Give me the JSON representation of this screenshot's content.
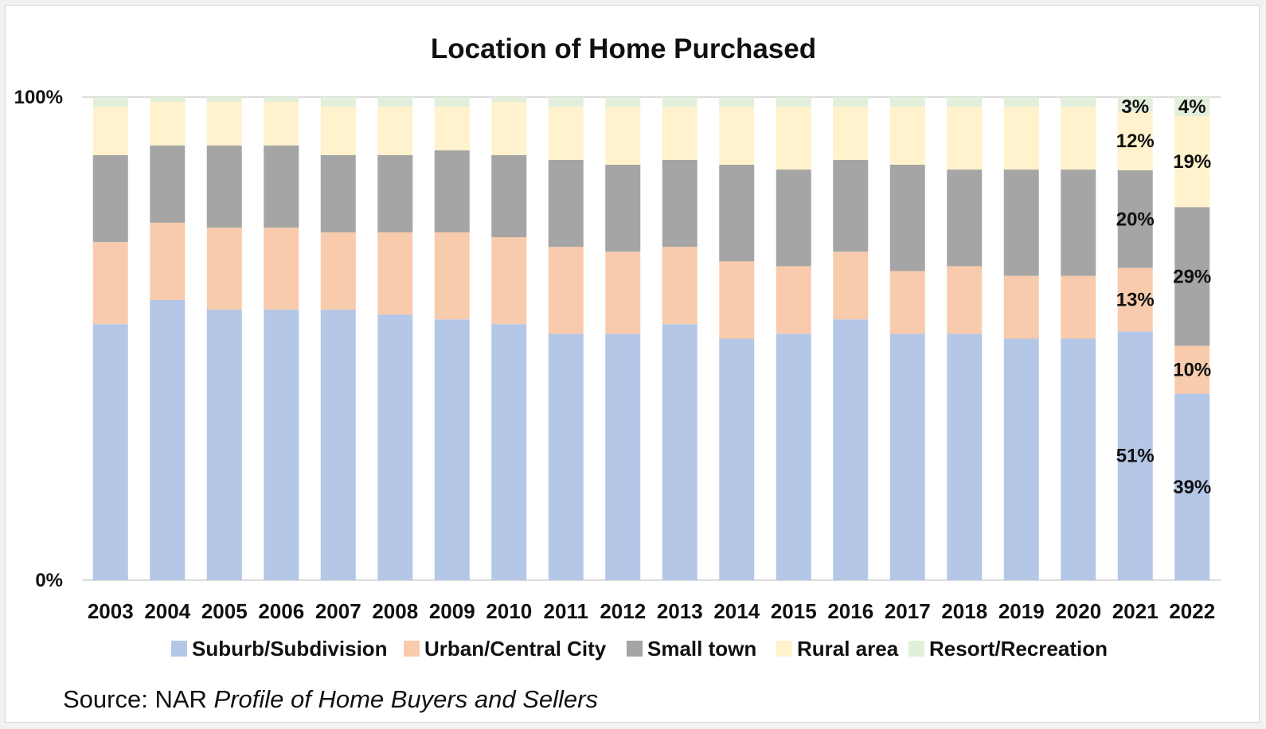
{
  "chart_data": {
    "type": "bar",
    "stacked": true,
    "normalized": true,
    "title": "Location of Home Purchased",
    "xlabel": "",
    "ylabel": "",
    "ylim": [
      0,
      100
    ],
    "y_ticks": [
      {
        "value": 0,
        "label": "0%"
      },
      {
        "value": 100,
        "label": "100%"
      }
    ],
    "grid": false,
    "legend_position": "bottom",
    "categories": [
      "2003",
      "2004",
      "2005",
      "2006",
      "2007",
      "2008",
      "2009",
      "2010",
      "2011",
      "2012",
      "2013",
      "2014",
      "2015",
      "2016",
      "2017",
      "2018",
      "2019",
      "2020",
      "2021",
      "2022"
    ],
    "series": [
      {
        "name": "Suburb/Subdivision",
        "color": "#b4c7e7",
        "values": [
          53,
          58,
          56,
          56,
          56,
          55,
          54,
          53,
          51,
          51,
          53,
          50,
          51,
          54,
          51,
          51,
          50,
          50,
          51,
          39
        ]
      },
      {
        "name": "Urban/Central City",
        "color": "#f8cbad",
        "values": [
          17,
          16,
          17,
          17,
          16,
          17,
          18,
          18,
          18,
          17,
          16,
          16,
          14,
          14,
          13,
          14,
          13,
          13,
          13,
          10
        ]
      },
      {
        "name": "Small town",
        "color": "#a5a5a5",
        "values": [
          18,
          16,
          17,
          17,
          16,
          16,
          17,
          17,
          18,
          18,
          18,
          20,
          20,
          19,
          22,
          20,
          22,
          22,
          20,
          29
        ]
      },
      {
        "name": "Rural area",
        "color": "#fff2cc",
        "values": [
          10,
          9,
          9,
          9,
          10,
          10,
          9,
          11,
          11,
          12,
          11,
          12,
          13,
          11,
          12,
          13,
          13,
          13,
          12,
          19
        ]
      },
      {
        "name": "Resort/Recreation",
        "color": "#e2efda",
        "values": [
          2,
          1,
          1,
          1,
          2,
          2,
          2,
          1,
          2,
          2,
          2,
          2,
          2,
          2,
          2,
          2,
          2,
          2,
          3,
          4
        ]
      }
    ],
    "data_labels": [
      {
        "category": "2021",
        "labels": [
          "51%",
          "13%",
          "20%",
          "12%",
          "3%"
        ]
      },
      {
        "category": "2022",
        "labels": [
          "39%",
          "10%",
          "29%",
          "19%",
          "4%"
        ]
      }
    ]
  },
  "source": {
    "prefix": "Source: NAR ",
    "publication": "Profile of Home Buyers and Sellers"
  }
}
